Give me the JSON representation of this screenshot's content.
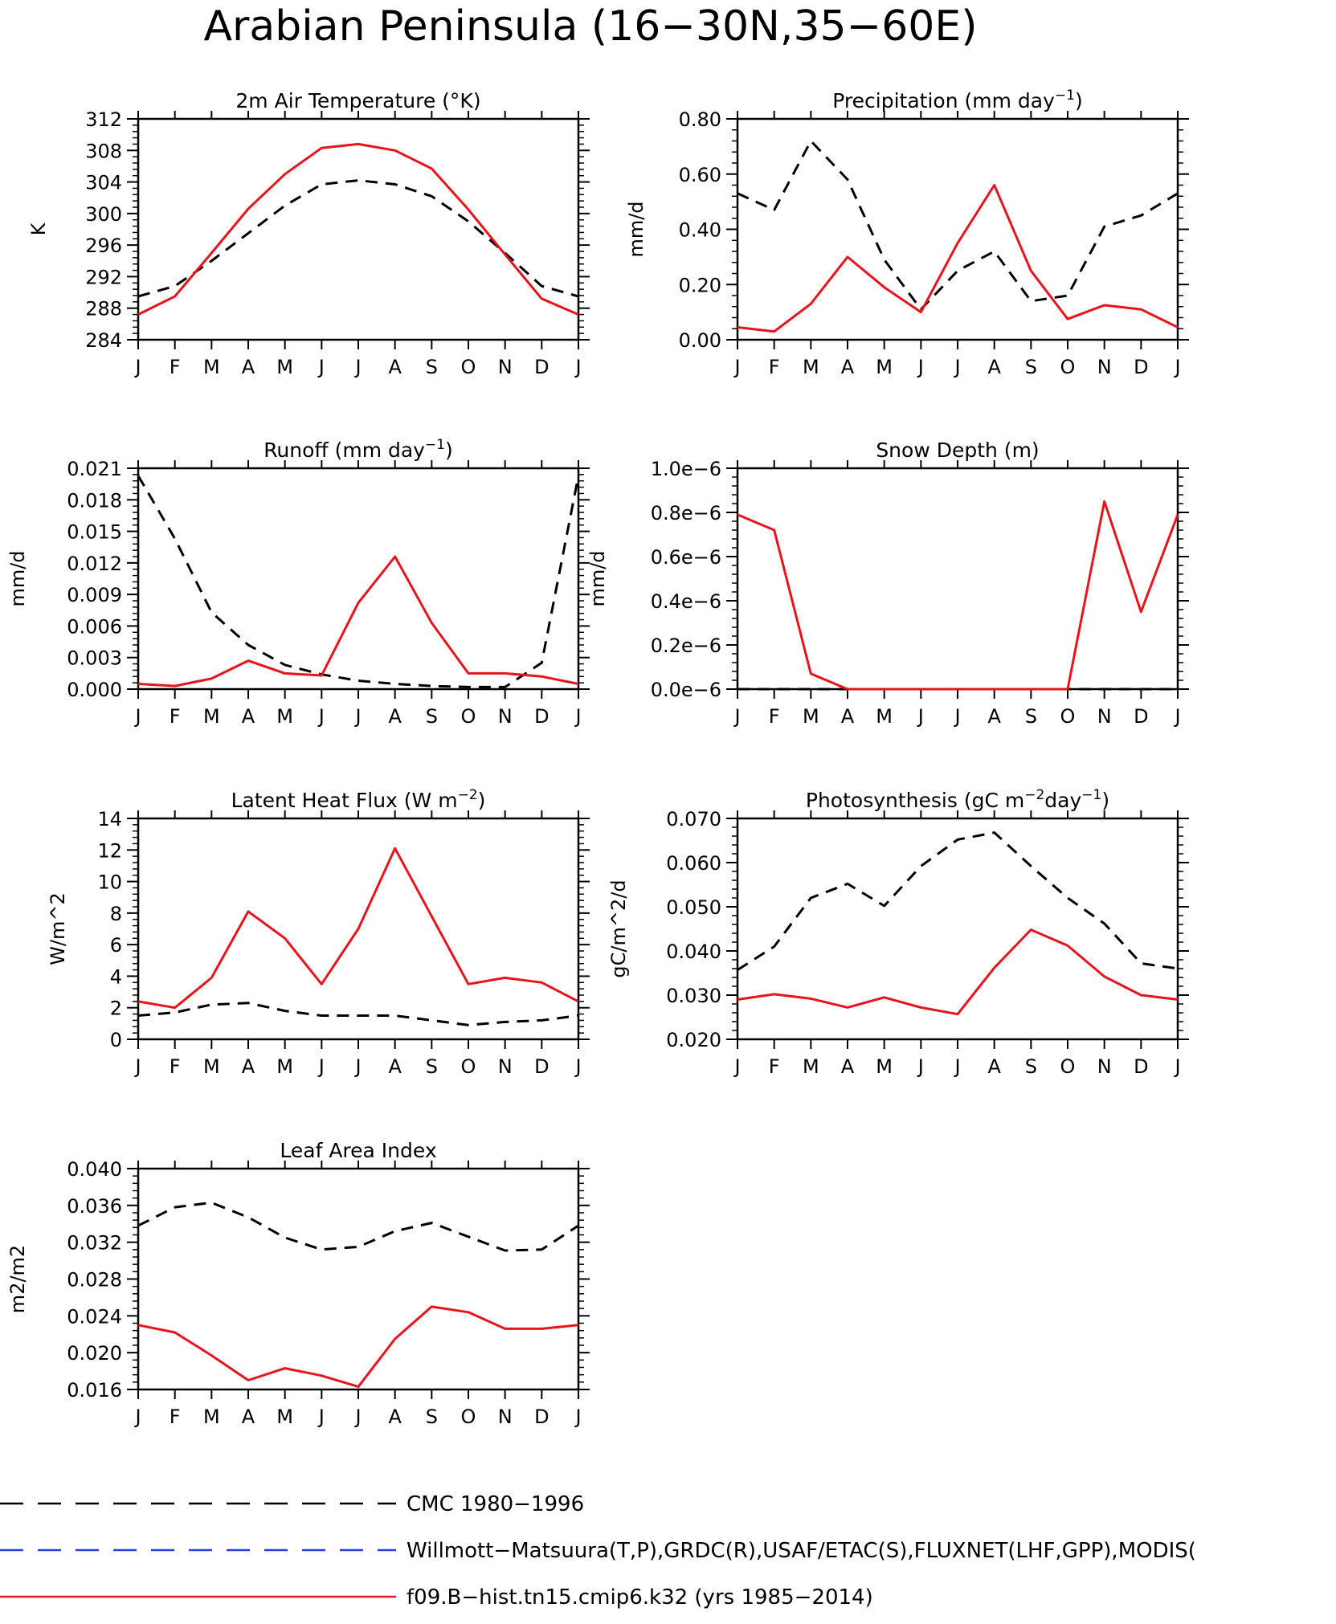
{
  "title": "Arabian Peninsula (16−30N,35−60E)",
  "months": [
    "J",
    "F",
    "M",
    "A",
    "M",
    "J",
    "J",
    "A",
    "S",
    "O",
    "N",
    "D",
    "J"
  ],
  "colors": {
    "obs": "#000000",
    "obs_alt": "#2b3fd6",
    "model": "#e8141c"
  },
  "legend": [
    {
      "label": "CMC 1980−1996",
      "style": "dashed",
      "color": "#000000"
    },
    {
      "label": "Willmott−Matsuura(T,P),GRDC(R),USAF/ETAC(S),FLUXNET(LHF,GPP),MODIS(",
      "style": "dashed",
      "color": "#2b3fd6"
    },
    {
      "label": "f09.B−hist.tn15.cmip6.k32 (yrs 1985−2014)",
      "style": "solid",
      "color": "#e8141c"
    }
  ],
  "chart_data": [
    {
      "type": "line",
      "title": "2m Air Temperature (°K)",
      "ylabel": "K",
      "ylim": [
        284,
        312
      ],
      "yticks": [
        "284",
        "288",
        "292",
        "296",
        "300",
        "304",
        "308",
        "312"
      ],
      "x": [
        "J",
        "F",
        "M",
        "A",
        "M",
        "J",
        "J",
        "A",
        "S",
        "O",
        "N",
        "D",
        "J"
      ],
      "series": [
        {
          "style": "dashed",
          "values": [
            289.5,
            290.8,
            294.0,
            297.5,
            301.0,
            303.7,
            304.2,
            303.7,
            302.2,
            299.0,
            295.0,
            290.8,
            289.5
          ]
        },
        {
          "style": "solid",
          "values": [
            287.2,
            289.5,
            295.0,
            300.6,
            305.0,
            308.3,
            308.8,
            308.0,
            305.7,
            300.5,
            294.8,
            289.2,
            287.2
          ]
        }
      ]
    },
    {
      "type": "line",
      "title": "Precipitation (mm day",
      "title_sup": "−1",
      "title_end": ")",
      "ylabel": "mm/d",
      "ylim": [
        0,
        0.8
      ],
      "yticks": [
        "0.00",
        "0.20",
        "0.40",
        "0.60",
        "0.80"
      ],
      "x": [
        "J",
        "F",
        "M",
        "A",
        "M",
        "J",
        "J",
        "A",
        "S",
        "O",
        "N",
        "D",
        "J"
      ],
      "series": [
        {
          "style": "dashed",
          "values": [
            0.53,
            0.47,
            0.72,
            0.58,
            0.29,
            0.11,
            0.25,
            0.32,
            0.14,
            0.16,
            0.41,
            0.45,
            0.53
          ]
        },
        {
          "style": "solid",
          "values": [
            0.045,
            0.03,
            0.13,
            0.3,
            0.19,
            0.1,
            0.35,
            0.56,
            0.25,
            0.075,
            0.125,
            0.11,
            0.045
          ]
        }
      ]
    },
    {
      "type": "line",
      "title": "Runoff (mm day",
      "title_sup": "−1",
      "title_end": ")",
      "ylabel": "mm/d",
      "ylim": [
        0,
        0.021
      ],
      "yticks": [
        "0.000",
        "0.003",
        "0.006",
        "0.009",
        "0.012",
        "0.015",
        "0.018",
        "0.021"
      ],
      "x": [
        "J",
        "F",
        "M",
        "A",
        "M",
        "J",
        "J",
        "A",
        "S",
        "O",
        "N",
        "D",
        "J"
      ],
      "series": [
        {
          "style": "dashed",
          "values": [
            0.0203,
            0.0143,
            0.0073,
            0.0042,
            0.0023,
            0.0014,
            0.0008,
            0.0005,
            0.0003,
            0.0002,
            0.0002,
            0.0025,
            0.0203
          ]
        },
        {
          "style": "solid",
          "values": [
            0.0005,
            0.0003,
            0.001,
            0.0027,
            0.0015,
            0.0013,
            0.0082,
            0.0126,
            0.0063,
            0.0015,
            0.0015,
            0.0012,
            0.0005
          ]
        }
      ]
    },
    {
      "type": "line",
      "title": "Snow Depth (m)",
      "ylabel": "mm/d",
      "ylim": [
        0,
        1e-06
      ],
      "yticks": [
        "0.0e−6",
        "0.2e−6",
        "0.4e−6",
        "0.6e−6",
        "0.8e−6",
        "1.0e−6"
      ],
      "x": [
        "J",
        "F",
        "M",
        "A",
        "M",
        "J",
        "J",
        "A",
        "S",
        "O",
        "N",
        "D",
        "J"
      ],
      "series": [
        {
          "style": "dashed",
          "values": [
            0,
            0,
            0,
            0,
            0,
            0,
            0,
            0,
            0,
            0,
            0,
            0,
            0
          ]
        },
        {
          "style": "solid",
          "values": [
            7.9e-07,
            7.2e-07,
            7e-08,
            0,
            0,
            0,
            0,
            0,
            0,
            0,
            8.5e-07,
            3.5e-07,
            7.9e-07
          ]
        }
      ]
    },
    {
      "type": "line",
      "title": "Latent Heat Flux (W m",
      "title_sup": "−2",
      "title_end": ")",
      "ylabel": "W/m^2",
      "ylim": [
        0,
        14
      ],
      "yticks": [
        "0",
        "2",
        "4",
        "6",
        "8",
        "10",
        "12",
        "14"
      ],
      "x": [
        "J",
        "F",
        "M",
        "A",
        "M",
        "J",
        "J",
        "A",
        "S",
        "O",
        "N",
        "D",
        "J"
      ],
      "series": [
        {
          "style": "dashed",
          "values": [
            1.5,
            1.7,
            2.2,
            2.3,
            1.8,
            1.5,
            1.5,
            1.5,
            1.2,
            0.9,
            1.1,
            1.2,
            1.5
          ]
        },
        {
          "style": "solid",
          "values": [
            2.4,
            2.0,
            3.9,
            8.1,
            6.4,
            3.5,
            7.0,
            12.1,
            7.8,
            3.5,
            3.9,
            3.6,
            2.4
          ]
        }
      ]
    },
    {
      "type": "line",
      "title": "Photosynthesis (gC m",
      "title_sup": "−2",
      "title_mid": "day",
      "title_sup2": "−1",
      "title_end": ")",
      "ylabel": "gC/m^2/d",
      "ylim": [
        0.02,
        0.07
      ],
      "yticks": [
        "0.020",
        "0.030",
        "0.040",
        "0.050",
        "0.060",
        "0.070"
      ],
      "x": [
        "J",
        "F",
        "M",
        "A",
        "M",
        "J",
        "J",
        "A",
        "S",
        "O",
        "N",
        "D",
        "J"
      ],
      "series": [
        {
          "style": "dashed",
          "values": [
            0.0357,
            0.041,
            0.052,
            0.0552,
            0.0502,
            0.0592,
            0.0652,
            0.0668,
            0.0592,
            0.052,
            0.0462,
            0.0372,
            0.036
          ]
        },
        {
          "style": "solid",
          "values": [
            0.029,
            0.0302,
            0.0292,
            0.0272,
            0.0295,
            0.0272,
            0.0257,
            0.0362,
            0.0448,
            0.0412,
            0.0342,
            0.03,
            0.029
          ]
        }
      ]
    },
    {
      "type": "line",
      "title": "Leaf Area Index",
      "ylabel": "m2/m2",
      "ylim": [
        0.016,
        0.04
      ],
      "yticks": [
        "0.016",
        "0.020",
        "0.024",
        "0.028",
        "0.032",
        "0.036",
        "0.040"
      ],
      "x": [
        "J",
        "F",
        "M",
        "A",
        "M",
        "J",
        "J",
        "A",
        "S",
        "O",
        "N",
        "D",
        "J"
      ],
      "series": [
        {
          "style": "dashed",
          "values": [
            0.0338,
            0.0358,
            0.0363,
            0.0347,
            0.0325,
            0.0312,
            0.0315,
            0.0332,
            0.0341,
            0.0326,
            0.0311,
            0.0312,
            0.0338
          ]
        },
        {
          "style": "solid",
          "values": [
            0.023,
            0.0222,
            0.0197,
            0.017,
            0.0183,
            0.0175,
            0.0163,
            0.0215,
            0.025,
            0.0244,
            0.0226,
            0.0226,
            0.023
          ]
        }
      ]
    }
  ]
}
